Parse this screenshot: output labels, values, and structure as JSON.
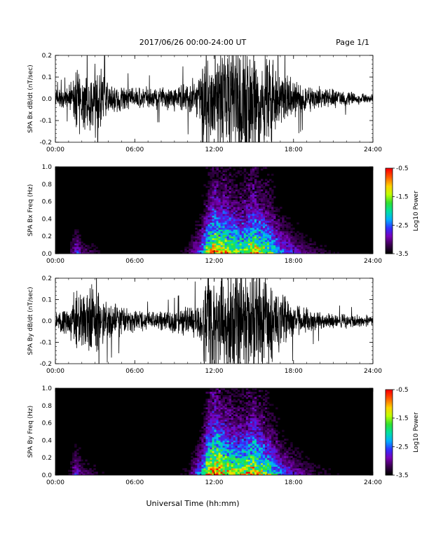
{
  "header": {
    "title": "2017/06/26  00:00-24:00 UT",
    "page": "Page 1/1"
  },
  "x_axis": {
    "title": "Universal Time (hh:mm)",
    "tick_labels": [
      "00:00",
      "06:00",
      "12:00",
      "18:00",
      "24:00"
    ],
    "range_hours": [
      0,
      24
    ]
  },
  "colors": {
    "trace": "#000000",
    "background": "#000000",
    "colormap": [
      "#000000",
      "#3a0050",
      "#7a00b8",
      "#3030ff",
      "#00b0ff",
      "#00e0a0",
      "#30e030",
      "#c0ff00",
      "#ffd000",
      "#ff6000",
      "#ff0000"
    ]
  },
  "chart_data": [
    {
      "type": "line",
      "ylabel": "SPA Bx dB/dt (nT/sec)",
      "ylim": [
        -0.2,
        0.2
      ],
      "y_tick_labels": [
        "-0.2",
        "-0.1",
        "0.0",
        "0.1",
        "0.2"
      ],
      "x_range_hours": [
        0,
        24
      ],
      "amplitude_envelope": {
        "hours": [
          0,
          1,
          1.6,
          2,
          3,
          4,
          5,
          6,
          7,
          8,
          9,
          10,
          11,
          11.3,
          12,
          13,
          14,
          15,
          16,
          17,
          18,
          19,
          20,
          21,
          22,
          23,
          24
        ],
        "amplitude": [
          0.04,
          0.06,
          0.2,
          0.15,
          0.2,
          0.08,
          0.07,
          0.06,
          0.06,
          0.06,
          0.07,
          0.09,
          0.12,
          0.3,
          0.3,
          0.3,
          0.3,
          0.3,
          0.25,
          0.15,
          0.1,
          0.07,
          0.06,
          0.05,
          0.04,
          0.03,
          0.03
        ]
      }
    },
    {
      "type": "heatmap",
      "ylabel": "SPA Bx Freq (Hz)",
      "ylim": [
        0,
        1.0
      ],
      "y_tick_labels": [
        "0.0",
        "0.2",
        "0.4",
        "0.6",
        "0.8",
        "1.0"
      ],
      "colorbar": {
        "label": "Log10 Power",
        "range": [
          -3.5,
          -0.5
        ],
        "tick_labels": [
          "-0.5",
          "-1.5",
          "-2.5",
          "-3.5"
        ]
      },
      "activity_profile": {
        "hours": [
          0,
          1,
          1.6,
          2,
          3,
          4,
          5,
          6,
          7,
          8,
          9,
          10,
          11,
          11.5,
          12,
          13,
          14,
          15,
          16,
          17,
          18,
          19,
          20,
          21,
          22,
          23,
          24
        ],
        "activity": [
          0.05,
          0.1,
          0.35,
          0.2,
          0.15,
          0.08,
          0.06,
          0.05,
          0.05,
          0.06,
          0.08,
          0.15,
          0.4,
          0.75,
          0.9,
          0.8,
          0.7,
          0.85,
          0.7,
          0.45,
          0.3,
          0.2,
          0.15,
          0.12,
          0.1,
          0.08,
          0.06
        ]
      }
    },
    {
      "type": "line",
      "ylabel": "SPA By dB/dt (nT/sec)",
      "ylim": [
        -0.2,
        0.2
      ],
      "y_tick_labels": [
        "-0.2",
        "-0.1",
        "0.0",
        "0.1",
        "0.2"
      ],
      "x_range_hours": [
        0,
        24
      ],
      "amplitude_envelope": {
        "hours": [
          0,
          1,
          1.6,
          2,
          3,
          4,
          5,
          6,
          7,
          8,
          9,
          10,
          11,
          11.3,
          12,
          13,
          14,
          15,
          16,
          17,
          18,
          19,
          20,
          21,
          22,
          23,
          24
        ],
        "amplitude": [
          0.05,
          0.07,
          0.2,
          0.15,
          0.2,
          0.1,
          0.08,
          0.06,
          0.05,
          0.05,
          0.06,
          0.08,
          0.12,
          0.3,
          0.3,
          0.3,
          0.3,
          0.3,
          0.25,
          0.16,
          0.1,
          0.07,
          0.05,
          0.04,
          0.04,
          0.03,
          0.03
        ]
      }
    },
    {
      "type": "heatmap",
      "ylabel": "SPA By Freq (Hz)",
      "ylim": [
        0,
        1.0
      ],
      "y_tick_labels": [
        "0.0",
        "0.2",
        "0.4",
        "0.6",
        "0.8",
        "1.0"
      ],
      "colorbar": {
        "label": "Log10 Power",
        "range": [
          -3.5,
          -0.5
        ],
        "tick_labels": [
          "-0.5",
          "-1.5",
          "-2.5",
          "-3.5"
        ]
      },
      "activity_profile": {
        "hours": [
          0,
          1,
          1.6,
          2,
          3,
          4,
          5,
          6,
          7,
          8,
          9,
          10,
          11,
          11.5,
          12,
          13,
          14,
          15,
          16,
          17,
          18,
          19,
          20,
          21,
          22,
          23,
          24
        ],
        "activity": [
          0.05,
          0.1,
          0.35,
          0.2,
          0.15,
          0.08,
          0.06,
          0.05,
          0.05,
          0.06,
          0.08,
          0.15,
          0.45,
          0.85,
          1.0,
          0.85,
          0.75,
          0.9,
          0.7,
          0.45,
          0.3,
          0.2,
          0.15,
          0.12,
          0.1,
          0.08,
          0.06
        ]
      }
    }
  ]
}
